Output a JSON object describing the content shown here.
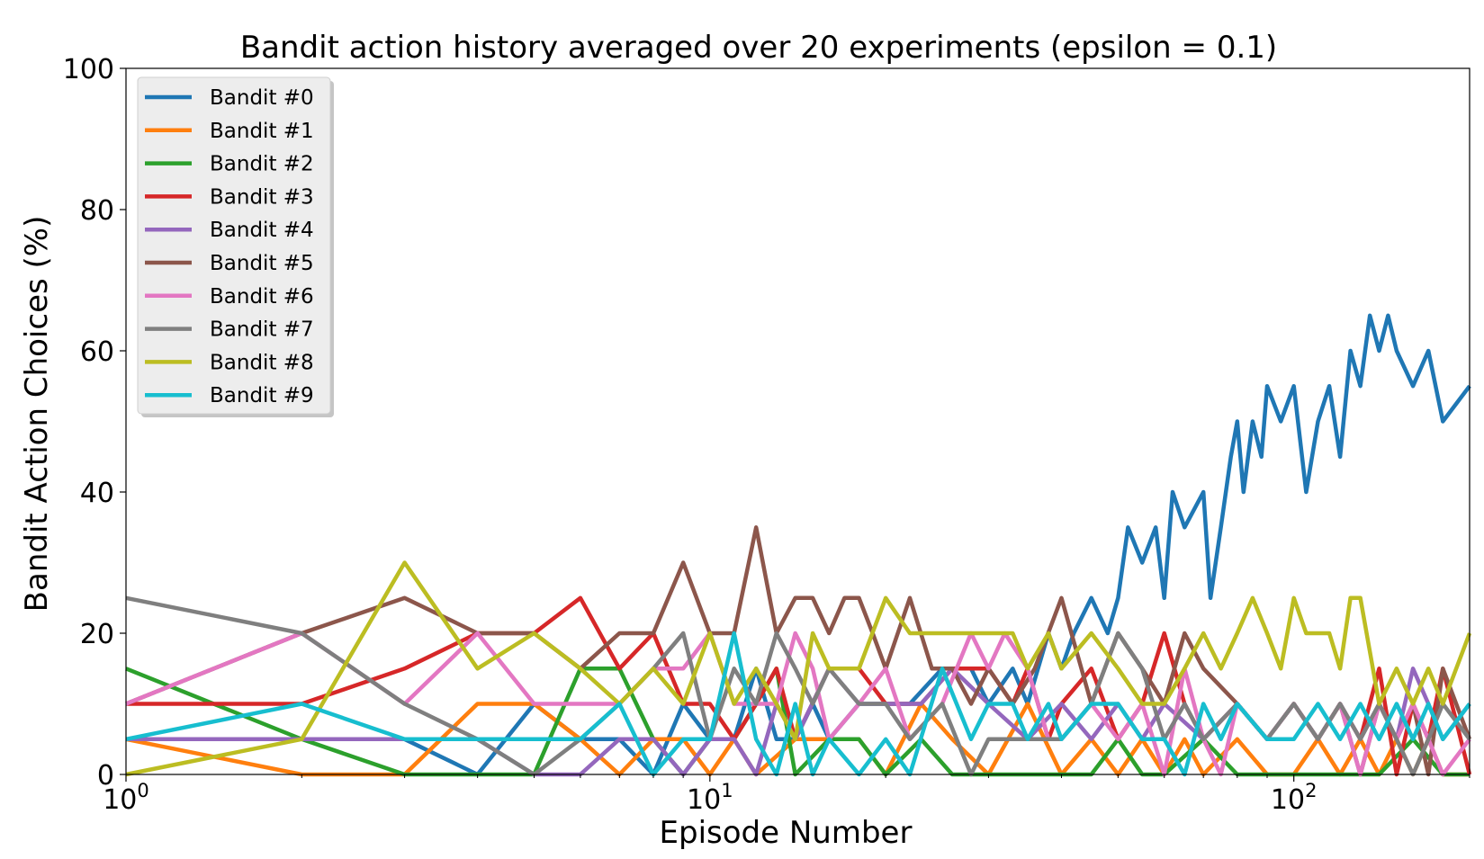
{
  "chart_data": {
    "type": "line",
    "title": "Bandit action history averaged over 20 experiments (epsilon = 0.1)",
    "xlabel": "Episode Number",
    "ylabel": "Bandit Action Choices (%)",
    "xscale": "log",
    "xlim": [
      1,
      200
    ],
    "ylim": [
      0,
      100
    ],
    "yticks": [
      0,
      20,
      40,
      60,
      80,
      100
    ],
    "xticks": [
      {
        "value": 1,
        "base": "10",
        "exp": "0"
      },
      {
        "value": 10,
        "base": "10",
        "exp": "1"
      },
      {
        "value": 100,
        "base": "10",
        "exp": "2"
      }
    ],
    "grid": false,
    "legend_position": "top-left",
    "colors": [
      "#1f77b4",
      "#ff7f0e",
      "#2ca02c",
      "#d62728",
      "#9467bd",
      "#8c564b",
      "#e377c2",
      "#7f7f7f",
      "#bcbd22",
      "#17becf"
    ],
    "series": [
      {
        "name": "Bandit #0",
        "x": [
          1,
          2,
          3,
          4,
          5,
          6,
          7,
          8,
          9,
          10,
          11,
          12,
          13,
          14,
          15,
          16,
          18,
          20,
          22,
          25,
          28,
          30,
          33,
          35,
          38,
          40,
          42,
          45,
          48,
          50,
          52,
          55,
          58,
          60,
          62,
          65,
          70,
          72,
          75,
          78,
          80,
          82,
          85,
          88,
          90,
          95,
          100,
          105,
          110,
          115,
          120,
          125,
          130,
          135,
          140,
          145,
          150,
          160,
          170,
          180,
          200
        ],
        "y": [
          5,
          5,
          5,
          0,
          10,
          5,
          5,
          0,
          10,
          5,
          5,
          15,
          5,
          5,
          10,
          5,
          10,
          10,
          10,
          15,
          15,
          10,
          15,
          10,
          20,
          15,
          20,
          25,
          20,
          25,
          35,
          30,
          35,
          25,
          40,
          35,
          40,
          25,
          35,
          45,
          50,
          40,
          50,
          45,
          55,
          50,
          55,
          40,
          50,
          55,
          45,
          60,
          55,
          65,
          60,
          65,
          60,
          55,
          60,
          50,
          55
        ]
      },
      {
        "name": "Bandit #1",
        "x": [
          1,
          2,
          3,
          4,
          5,
          6,
          7,
          8,
          9,
          10,
          11,
          12,
          14,
          16,
          18,
          20,
          23,
          26,
          30,
          35,
          40,
          45,
          50,
          55,
          60,
          65,
          70,
          80,
          90,
          100,
          110,
          120,
          130,
          140,
          150,
          160,
          170,
          180,
          200
        ],
        "y": [
          5,
          0,
          0,
          10,
          10,
          5,
          0,
          5,
          5,
          0,
          5,
          0,
          5,
          5,
          5,
          0,
          10,
          5,
          0,
          10,
          0,
          5,
          0,
          5,
          0,
          5,
          0,
          5,
          0,
          0,
          5,
          0,
          5,
          0,
          5,
          0,
          5,
          0,
          0
        ]
      },
      {
        "name": "Bandit #2",
        "x": [
          1,
          2,
          3,
          4,
          5,
          6,
          7,
          8,
          9,
          10,
          11,
          12,
          13,
          14,
          16,
          18,
          20,
          23,
          26,
          30,
          35,
          40,
          45,
          50,
          55,
          60,
          70,
          80,
          90,
          100,
          120,
          140,
          160,
          180,
          200
        ],
        "y": [
          15,
          5,
          0,
          0,
          0,
          15,
          15,
          5,
          0,
          5,
          5,
          10,
          15,
          0,
          5,
          5,
          0,
          5,
          0,
          0,
          0,
          0,
          0,
          5,
          0,
          0,
          5,
          0,
          0,
          0,
          0,
          0,
          5,
          0,
          0
        ]
      },
      {
        "name": "Bandit #3",
        "x": [
          1,
          2,
          3,
          4,
          5,
          6,
          7,
          8,
          9,
          10,
          11,
          12,
          13,
          14,
          16,
          18,
          20,
          23,
          26,
          30,
          33,
          35,
          38,
          40,
          45,
          50,
          55,
          60,
          65,
          70,
          80,
          90,
          100,
          110,
          120,
          130,
          140,
          150,
          160,
          170,
          180,
          200
        ],
        "y": [
          10,
          10,
          15,
          20,
          20,
          25,
          15,
          20,
          10,
          10,
          5,
          10,
          15,
          5,
          15,
          15,
          10,
          10,
          15,
          15,
          10,
          15,
          5,
          10,
          15,
          5,
          10,
          20,
          10,
          5,
          10,
          5,
          10,
          5,
          10,
          5,
          15,
          0,
          10,
          5,
          15,
          0
        ]
      },
      {
        "name": "Bandit #4",
        "x": [
          1,
          2,
          3,
          4,
          5,
          6,
          7,
          8,
          9,
          10,
          11,
          12,
          13,
          14,
          16,
          18,
          20,
          23,
          26,
          30,
          35,
          40,
          45,
          50,
          55,
          60,
          70,
          80,
          90,
          100,
          110,
          120,
          130,
          140,
          150,
          160,
          170,
          180,
          200
        ],
        "y": [
          5,
          5,
          5,
          5,
          0,
          0,
          5,
          5,
          0,
          5,
          5,
          0,
          10,
          5,
          15,
          10,
          10,
          10,
          15,
          10,
          5,
          10,
          5,
          10,
          5,
          10,
          5,
          10,
          5,
          10,
          5,
          10,
          5,
          10,
          5,
          15,
          10,
          5,
          10
        ]
      },
      {
        "name": "Bandit #5",
        "x": [
          1,
          2,
          3,
          4,
          5,
          6,
          7,
          8,
          9,
          10,
          11,
          12,
          13,
          14,
          15,
          16,
          17,
          18,
          19,
          20,
          22,
          24,
          26,
          28,
          30,
          33,
          36,
          40,
          45,
          50,
          55,
          60,
          65,
          70,
          80,
          90,
          100,
          110,
          120,
          130,
          140,
          150,
          160,
          170,
          180,
          200
        ],
        "y": [
          10,
          20,
          25,
          20,
          20,
          15,
          20,
          20,
          30,
          20,
          20,
          35,
          20,
          25,
          25,
          20,
          25,
          25,
          20,
          15,
          25,
          15,
          15,
          10,
          15,
          10,
          15,
          25,
          10,
          20,
          15,
          10,
          20,
          15,
          10,
          5,
          10,
          5,
          10,
          0,
          10,
          5,
          10,
          0,
          15,
          5
        ]
      },
      {
        "name": "Bandit #6",
        "x": [
          1,
          2,
          3,
          4,
          5,
          6,
          7,
          8,
          9,
          10,
          11,
          12,
          13,
          14,
          15,
          16,
          18,
          20,
          22,
          25,
          28,
          30,
          32,
          35,
          38,
          40,
          45,
          50,
          55,
          60,
          65,
          70,
          75,
          80,
          90,
          100,
          110,
          120,
          130,
          140,
          150,
          160,
          170,
          180,
          200
        ],
        "y": [
          10,
          20,
          10,
          20,
          10,
          10,
          10,
          15,
          15,
          20,
          10,
          10,
          10,
          20,
          15,
          5,
          10,
          15,
          5,
          10,
          20,
          15,
          20,
          15,
          5,
          5,
          10,
          5,
          10,
          0,
          15,
          5,
          0,
          10,
          5,
          10,
          5,
          10,
          0,
          10,
          5,
          10,
          5,
          0,
          5
        ]
      },
      {
        "name": "Bandit #7",
        "x": [
          1,
          2,
          3,
          4,
          5,
          6,
          7,
          8,
          9,
          10,
          11,
          12,
          13,
          14,
          15,
          16,
          18,
          20,
          22,
          25,
          28,
          30,
          35,
          40,
          45,
          50,
          55,
          60,
          65,
          70,
          80,
          90,
          100,
          110,
          120,
          130,
          140,
          150,
          160,
          170,
          180,
          200
        ],
        "y": [
          25,
          20,
          10,
          5,
          0,
          5,
          10,
          15,
          20,
          5,
          15,
          10,
          20,
          15,
          10,
          15,
          10,
          10,
          5,
          10,
          0,
          5,
          5,
          5,
          10,
          20,
          15,
          5,
          10,
          5,
          10,
          5,
          10,
          5,
          10,
          5,
          10,
          5,
          0,
          5,
          10,
          5
        ]
      },
      {
        "name": "Bandit #8",
        "x": [
          1,
          2,
          3,
          4,
          5,
          6,
          7,
          8,
          9,
          10,
          11,
          12,
          13,
          14,
          15,
          16,
          18,
          20,
          22,
          25,
          28,
          30,
          33,
          35,
          38,
          40,
          45,
          50,
          55,
          60,
          65,
          70,
          75,
          80,
          85,
          90,
          95,
          100,
          105,
          110,
          115,
          120,
          125,
          130,
          140,
          150,
          160,
          170,
          180,
          200
        ],
        "y": [
          0,
          5,
          30,
          15,
          20,
          15,
          10,
          15,
          10,
          20,
          10,
          15,
          10,
          5,
          20,
          15,
          15,
          25,
          20,
          20,
          20,
          20,
          20,
          15,
          20,
          15,
          20,
          15,
          10,
          10,
          15,
          20,
          15,
          20,
          25,
          20,
          15,
          25,
          20,
          20,
          20,
          15,
          25,
          25,
          10,
          15,
          10,
          15,
          10,
          20
        ]
      },
      {
        "name": "Bandit #9",
        "x": [
          1,
          2,
          3,
          4,
          5,
          6,
          7,
          8,
          9,
          10,
          11,
          12,
          13,
          14,
          15,
          16,
          18,
          20,
          22,
          25,
          28,
          30,
          33,
          35,
          38,
          40,
          45,
          50,
          55,
          60,
          65,
          70,
          75,
          80,
          90,
          100,
          110,
          120,
          130,
          140,
          150,
          160,
          170,
          180,
          200
        ],
        "y": [
          5,
          10,
          5,
          5,
          5,
          5,
          10,
          0,
          5,
          5,
          20,
          5,
          0,
          10,
          0,
          5,
          0,
          5,
          0,
          15,
          5,
          10,
          10,
          5,
          10,
          5,
          10,
          10,
          5,
          5,
          0,
          10,
          5,
          10,
          5,
          5,
          10,
          5,
          10,
          5,
          10,
          5,
          10,
          5,
          10
        ]
      }
    ]
  }
}
